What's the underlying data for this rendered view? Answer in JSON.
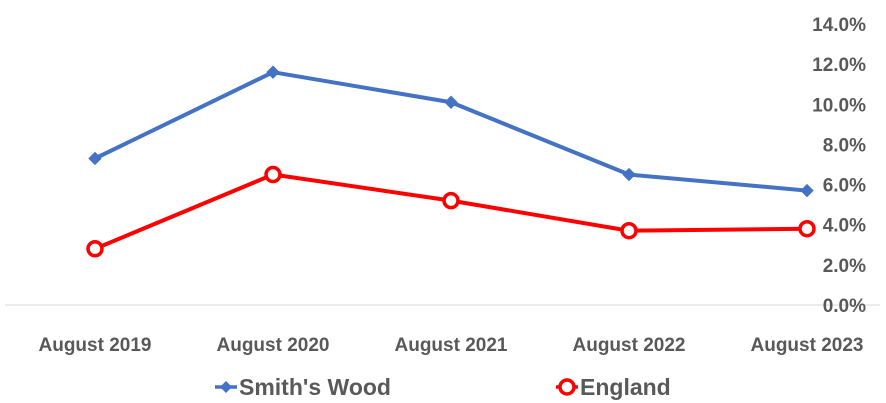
{
  "chart_data": {
    "type": "line",
    "categories": [
      "August 2019",
      "August 2020",
      "August 2021",
      "August 2022",
      "August 2023"
    ],
    "series": [
      {
        "name": "Smith's Wood",
        "values": [
          7.3,
          11.6,
          10.1,
          6.5,
          5.7
        ],
        "color": "#4472C4",
        "marker": "diamond"
      },
      {
        "name": "England",
        "values": [
          2.8,
          6.5,
          5.2,
          3.7,
          3.8
        ],
        "color": "#FF0000",
        "marker": "circle"
      }
    ],
    "ylim": [
      0,
      14
    ],
    "yticks": [
      "0.0%",
      "2.0%",
      "4.0%",
      "6.0%",
      "8.0%",
      "10.0%",
      "12.0%",
      "14.0%"
    ],
    "y_axis_position": "right",
    "legend_position": "bottom",
    "grid": false
  }
}
